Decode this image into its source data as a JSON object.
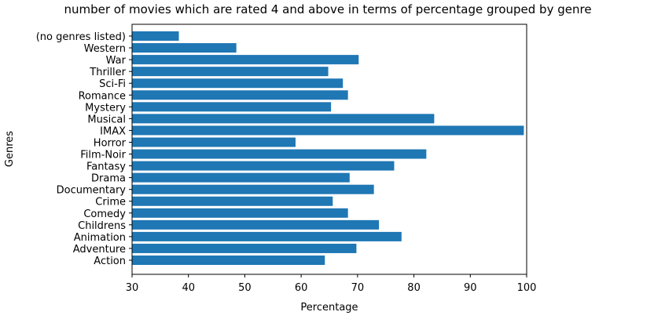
{
  "chart_data": {
    "type": "bar",
    "orientation": "horizontal",
    "title": "number of movies which are rated 4 and above in terms of percentage grouped by genre",
    "xlabel": "Percentage",
    "ylabel": "Genres",
    "xlim": [
      30,
      100
    ],
    "xticks": [
      "30",
      "40",
      "50",
      "60",
      "70",
      "80",
      "90",
      "100"
    ],
    "grid": false,
    "bar_color": "#1f77b4",
    "categories": [
      "Action",
      "Adventure",
      "Animation",
      "Childrens",
      "Comedy",
      "Crime",
      "Documentary",
      "Drama",
      "Fantasy",
      "Film-Noir",
      "Horror",
      "IMAX",
      "Musical",
      "Mystery",
      "Romance",
      "Sci-Fi",
      "Thriller",
      "War",
      "Western",
      "(no genres listed)"
    ],
    "values": [
      64.2,
      69.8,
      77.8,
      73.8,
      68.3,
      65.6,
      72.9,
      68.6,
      76.5,
      82.2,
      59.0,
      99.5,
      83.6,
      65.3,
      68.3,
      67.4,
      64.8,
      70.2,
      48.5,
      38.3
    ]
  }
}
